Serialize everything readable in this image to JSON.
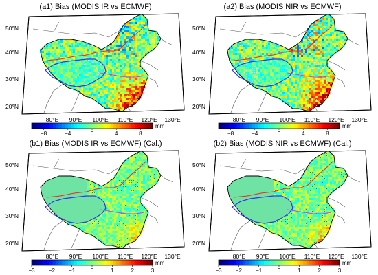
{
  "panels": [
    {
      "id": "a1",
      "title": "(a1) Bias (MODIS IR vs ECMWF)",
      "lat_labels": [
        "50°N",
        "40°N",
        "30°N",
        "20°N"
      ],
      "lon_labels": [
        "80°E",
        "90°E",
        "100°E",
        "110°E",
        "120°E",
        "130°E"
      ],
      "colorbar": {
        "ticks": [
          "−8",
          "−4",
          "0",
          "4",
          "8"
        ],
        "range": [
          -10,
          10
        ],
        "unit": "mm"
      },
      "field": "large"
    },
    {
      "id": "a2",
      "title": "(a2) Bias (MODIS NIR vs ECMWF)",
      "lat_labels": [
        "50°N",
        "40°N",
        "30°N",
        "20°N"
      ],
      "lon_labels": [
        "80°E",
        "90°E",
        "100°E",
        "110°E",
        "120°E",
        "130°E"
      ],
      "colorbar": {
        "ticks": [
          "−8",
          "−4",
          "0",
          "4",
          "8"
        ],
        "range": [
          -10,
          10
        ],
        "unit": "mm"
      },
      "field": "large"
    },
    {
      "id": "b1",
      "title": "(b1) Bias (MODIS IR vs ECMWF) (Cal.)",
      "lat_labels": [
        "50°N",
        "40°N",
        "30°N",
        "20°N"
      ],
      "lon_labels": [
        "80°E",
        "90°E",
        "100°E",
        "110°E",
        "120°E",
        "130°E"
      ],
      "colorbar": {
        "ticks": [
          "−3",
          "−2",
          "−1",
          "0",
          "1",
          "2",
          "3"
        ],
        "range": [
          -3,
          3
        ],
        "unit": "mm"
      },
      "field": "small"
    },
    {
      "id": "b2",
      "title": "(b2) Bias (MODIS NIR vs ECMWF) (Cal.)",
      "lat_labels": [
        "50°N",
        "40°N",
        "30°N",
        "20°N"
      ],
      "lon_labels": [
        "80°E",
        "90°E",
        "100°E",
        "110°E",
        "120°E",
        "130°E"
      ],
      "colorbar": {
        "ticks": [
          "−3",
          "−2",
          "−1",
          "0",
          "1",
          "2",
          "3"
        ],
        "range": [
          -3,
          3
        ],
        "unit": "mm"
      },
      "field": "small"
    }
  ],
  "colors": {
    "colormap": [
      "#00007f",
      "#0000ff",
      "#007fff",
      "#00ffff",
      "#7fff7f",
      "#ffff00",
      "#ff7f00",
      "#ff0000",
      "#7f0000"
    ],
    "china_fill": "#6fe3a3",
    "tibet_boundary": "#3030ff",
    "yangtze_boundary": "#c040e0",
    "north_boundary": "#ff2020"
  }
}
